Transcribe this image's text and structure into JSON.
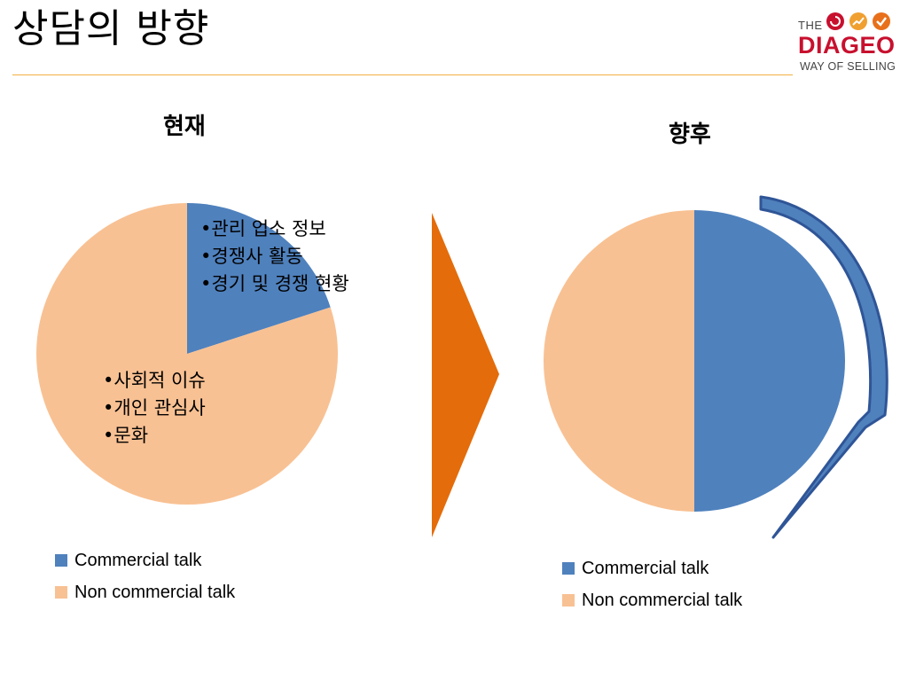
{
  "slide": {
    "title": "상담의 방향"
  },
  "logo": {
    "the": "THE",
    "brand": "DIAGEO",
    "tagline": "WAY OF SELLING",
    "colors": [
      "#c8102e",
      "#f0a030",
      "#e8701a"
    ]
  },
  "colors": {
    "commercial": "#4f81bd",
    "non_commercial": "#f8c193",
    "arrow": "#e46c0a",
    "bracket_fill": "#4f81bd",
    "bracket_stroke": "#2f5597",
    "rule": "#f0b040"
  },
  "chart_data": [
    {
      "type": "pie",
      "title": "현재",
      "categories": [
        "Commercial talk",
        "Non commercial talk"
      ],
      "values": [
        20,
        80
      ],
      "legend_position": "bottom",
      "annotations": {
        "commercial": [
          "•관리 업소 정보",
          "•경쟁사 활동",
          "•경기 및 경쟁 현황"
        ],
        "non_commercial": [
          "•사회적 이슈",
          "•개인 관심사",
          "•문화"
        ]
      }
    },
    {
      "type": "pie",
      "title": "향후",
      "categories": [
        "Commercial talk",
        "Non commercial talk"
      ],
      "values": [
        50,
        50
      ],
      "legend_position": "bottom"
    }
  ]
}
